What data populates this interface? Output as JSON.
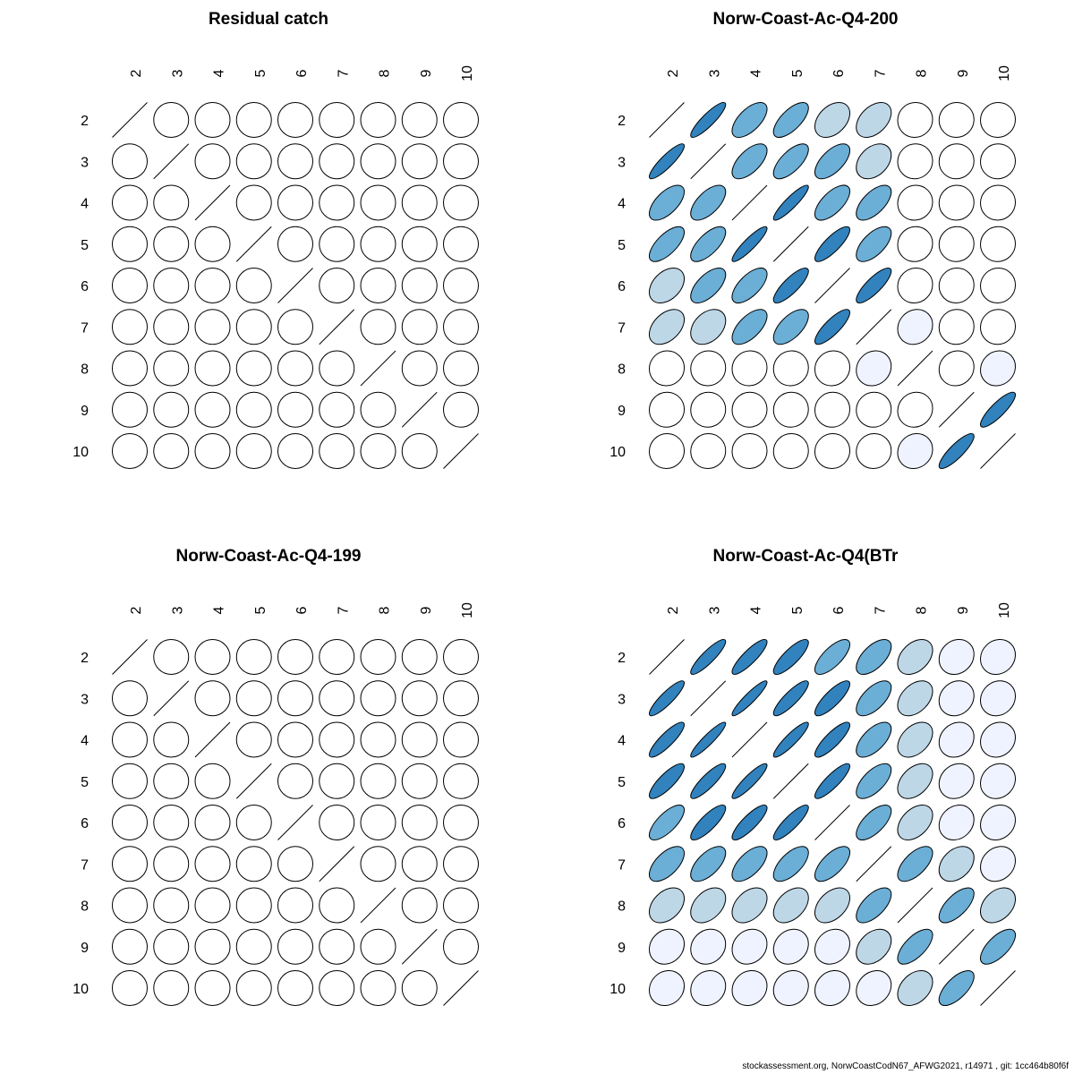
{
  "footer": "stockassessment.org, NorwCoastCodN67_AFWG2021, r14971 , git: 1cc464b80f6f",
  "fill_scale": {
    "low": "#eff3ff",
    "low_mid": "#bdd7e7",
    "mid": "#6baed6",
    "high": "#3182bd"
  },
  "chart_data": [
    {
      "type": "heatmap",
      "title": "Residual catch",
      "ages": [
        "2",
        "3",
        "4",
        "5",
        "6",
        "7",
        "8",
        "9",
        "10"
      ],
      "correlations": [
        [
          1,
          0,
          0,
          0,
          0,
          0,
          0,
          0,
          0
        ],
        [
          0,
          1,
          0,
          0,
          0,
          0,
          0,
          0,
          0
        ],
        [
          0,
          0,
          1,
          0,
          0,
          0,
          0,
          0,
          0
        ],
        [
          0,
          0,
          0,
          1,
          0,
          0,
          0,
          0,
          0
        ],
        [
          0,
          0,
          0,
          0,
          1,
          0,
          0,
          0,
          0
        ],
        [
          0,
          0,
          0,
          0,
          0,
          1,
          0,
          0,
          0
        ],
        [
          0,
          0,
          0,
          0,
          0,
          0,
          1,
          0,
          0
        ],
        [
          0,
          0,
          0,
          0,
          0,
          0,
          0,
          1,
          0
        ],
        [
          0,
          0,
          0,
          0,
          0,
          0,
          0,
          0,
          1
        ]
      ]
    },
    {
      "type": "heatmap",
      "title": "Norw-Coast-Ac-Q4-200",
      "ages": [
        "2",
        "3",
        "4",
        "5",
        "6",
        "7",
        "8",
        "9",
        "10"
      ],
      "correlations": [
        [
          1,
          0.88,
          0.62,
          0.68,
          0.38,
          0.42,
          0.03,
          0.02,
          0.02
        ],
        [
          0.88,
          1,
          0.62,
          0.68,
          0.62,
          0.35,
          0.03,
          0.02,
          0.02
        ],
        [
          0.62,
          0.62,
          1,
          0.9,
          0.65,
          0.62,
          0.04,
          0.02,
          0.02
        ],
        [
          0.68,
          0.68,
          0.9,
          1,
          0.82,
          0.62,
          0.04,
          0.02,
          0.02
        ],
        [
          0.38,
          0.62,
          0.65,
          0.82,
          1,
          0.82,
          0.06,
          0.03,
          0.03
        ],
        [
          0.42,
          0.35,
          0.62,
          0.62,
          0.82,
          1,
          0.12,
          0.03,
          0.03
        ],
        [
          0.03,
          0.03,
          0.04,
          0.04,
          0.06,
          0.12,
          1,
          0.08,
          0.1
        ],
        [
          0.02,
          0.02,
          0.02,
          0.02,
          0.03,
          0.03,
          0.08,
          1,
          0.85
        ],
        [
          0.02,
          0.02,
          0.02,
          0.02,
          0.03,
          0.03,
          0.1,
          0.85,
          1
        ]
      ]
    },
    {
      "type": "heatmap",
      "title": "Norw-Coast-Ac-Q4-199",
      "ages": [
        "2",
        "3",
        "4",
        "5",
        "6",
        "7",
        "8",
        "9",
        "10"
      ],
      "correlations": [
        [
          1,
          0,
          0,
          0,
          0,
          0,
          0,
          0,
          0
        ],
        [
          0,
          1,
          0,
          0,
          0,
          0,
          0,
          0,
          0
        ],
        [
          0,
          0,
          1,
          0,
          0,
          0,
          0,
          0,
          0
        ],
        [
          0,
          0,
          0,
          1,
          0,
          0,
          0,
          0,
          0
        ],
        [
          0,
          0,
          0,
          0,
          1,
          0,
          0,
          0,
          0
        ],
        [
          0,
          0,
          0,
          0,
          0,
          1,
          0,
          0,
          0
        ],
        [
          0,
          0,
          0,
          0,
          0,
          0,
          1,
          0,
          0
        ],
        [
          0,
          0,
          0,
          0,
          0,
          0,
          0,
          1,
          0
        ],
        [
          0,
          0,
          0,
          0,
          0,
          0,
          0,
          0,
          1
        ]
      ]
    },
    {
      "type": "heatmap",
      "title": "Norw-Coast-Ac-Q4(BTr",
      "ages": [
        "2",
        "3",
        "4",
        "5",
        "6",
        "7",
        "8",
        "9",
        "10"
      ],
      "correlations": [
        [
          1,
          0.88,
          0.86,
          0.82,
          0.72,
          0.6,
          0.38,
          0.15,
          0.12
        ],
        [
          0.88,
          1,
          0.92,
          0.86,
          0.82,
          0.62,
          0.4,
          0.15,
          0.12
        ],
        [
          0.86,
          0.92,
          1,
          0.9,
          0.84,
          0.62,
          0.4,
          0.16,
          0.13
        ],
        [
          0.82,
          0.86,
          0.9,
          1,
          0.86,
          0.64,
          0.42,
          0.16,
          0.13
        ],
        [
          0.72,
          0.82,
          0.84,
          0.86,
          1,
          0.66,
          0.42,
          0.17,
          0.14
        ],
        [
          0.6,
          0.62,
          0.62,
          0.64,
          0.66,
          1,
          0.62,
          0.35,
          0.18
        ],
        [
          0.38,
          0.4,
          0.4,
          0.42,
          0.42,
          0.62,
          1,
          0.66,
          0.35
        ],
        [
          0.15,
          0.15,
          0.16,
          0.16,
          0.17,
          0.35,
          0.66,
          1,
          0.66
        ],
        [
          0.12,
          0.12,
          0.13,
          0.13,
          0.14,
          0.18,
          0.35,
          0.66,
          1
        ]
      ]
    }
  ]
}
